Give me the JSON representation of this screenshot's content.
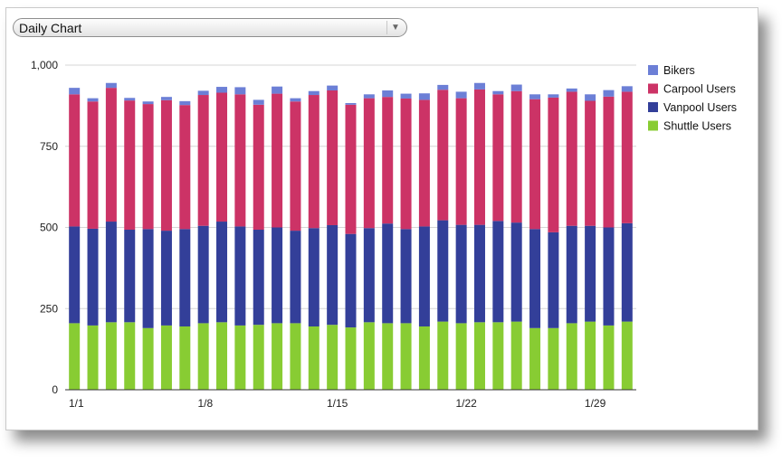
{
  "dropdown": {
    "selected": "Daily Chart"
  },
  "chart_data": {
    "type": "bar",
    "stacked": true,
    "ylim": [
      0,
      1000
    ],
    "yticks": [
      0,
      250,
      500,
      750,
      1000
    ],
    "ytick_labels": [
      "0",
      "250",
      "500",
      "750",
      "1,000"
    ],
    "xtick_labels": [
      {
        "index": 0,
        "label": "1/1"
      },
      {
        "index": 7,
        "label": "1/8"
      },
      {
        "index": 14,
        "label": "1/15"
      },
      {
        "index": 21,
        "label": "1/22"
      },
      {
        "index": 28,
        "label": "1/29"
      }
    ],
    "grid": true,
    "legend_position": "right",
    "categories": [
      "1/1",
      "1/2",
      "1/3",
      "1/4",
      "1/5",
      "1/6",
      "1/7",
      "1/8",
      "1/9",
      "1/10",
      "1/11",
      "1/12",
      "1/13",
      "1/14",
      "1/15",
      "1/16",
      "1/17",
      "1/18",
      "1/19",
      "1/20",
      "1/21",
      "1/22",
      "1/23",
      "1/24",
      "1/25",
      "1/26",
      "1/27",
      "1/28",
      "1/29",
      "1/30",
      "1/31"
    ],
    "series": [
      {
        "name": "Shuttle Users",
        "color": "#88cc33",
        "values": [
          205,
          198,
          208,
          208,
          190,
          198,
          195,
          205,
          208,
          198,
          200,
          205,
          205,
          195,
          200,
          192,
          208,
          205,
          205,
          195,
          210,
          205,
          208,
          208,
          210,
          190,
          190,
          205,
          210,
          198,
          210
        ]
      },
      {
        "name": "Vanpool Users",
        "color": "#333f99",
        "values": [
          298,
          298,
          310,
          285,
          305,
          292,
          300,
          300,
          310,
          305,
          293,
          295,
          285,
          303,
          307,
          288,
          290,
          307,
          290,
          308,
          312,
          303,
          300,
          312,
          305,
          305,
          295,
          300,
          295,
          302,
          303
        ]
      },
      {
        "name": "Carpool Users",
        "color": "#cc3366",
        "values": [
          407,
          392,
          412,
          398,
          385,
          402,
          382,
          403,
          397,
          407,
          385,
          412,
          398,
          410,
          415,
          398,
          400,
          390,
          402,
          390,
          402,
          390,
          417,
          390,
          405,
          400,
          415,
          413,
          385,
          403,
          405
        ]
      },
      {
        "name": "Bikers",
        "color": "#6c7fd6",
        "values": [
          20,
          10,
          15,
          8,
          8,
          10,
          12,
          13,
          18,
          22,
          15,
          22,
          10,
          12,
          15,
          5,
          12,
          20,
          15,
          20,
          15,
          20,
          20,
          10,
          20,
          15,
          10,
          10,
          20,
          20,
          17
        ]
      }
    ]
  }
}
